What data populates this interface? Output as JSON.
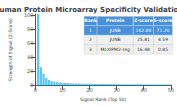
{
  "chart_data": {
    "type": "bar",
    "title": "Human Protein Microarray Specificity Validation",
    "xlabel": "Signal Rank (Top 50)",
    "ylabel": "Strength of Signal (Z-Score)",
    "x": [
      1,
      2,
      3,
      4,
      5,
      6,
      7,
      8,
      9,
      10,
      11,
      12,
      13,
      14,
      15,
      16,
      17,
      18,
      19,
      20,
      21,
      22,
      23,
      24,
      25,
      26,
      27,
      28,
      29,
      30,
      31,
      32,
      33,
      34,
      35,
      36,
      37,
      38,
      39,
      40,
      41,
      42,
      43,
      44,
      45,
      46,
      47,
      48,
      49,
      50
    ],
    "values": [
      102.0,
      25.81,
      16.48,
      10.2,
      7.5,
      5.8,
      4.9,
      4.2,
      3.8,
      3.4,
      3.1,
      2.9,
      2.7,
      2.5,
      2.3,
      2.2,
      2.1,
      2.0,
      1.9,
      1.8,
      1.75,
      1.7,
      1.65,
      1.6,
      1.55,
      1.5,
      1.45,
      1.4,
      1.35,
      1.3,
      1.25,
      1.2,
      1.18,
      1.15,
      1.12,
      1.1,
      1.08,
      1.06,
      1.04,
      1.02,
      1.0,
      0.98,
      0.96,
      0.94,
      0.92,
      0.9,
      0.88,
      0.86,
      0.84,
      0.82
    ],
    "color": "#5bc8f5",
    "xlim": [
      0,
      50
    ],
    "xticks": [
      0,
      10,
      20,
      30,
      40,
      50
    ],
    "ylim": [
      0,
      102
    ],
    "yticks": [
      0,
      20,
      40,
      60,
      80,
      100
    ],
    "grid": false,
    "table": {
      "header": [
        "Rank",
        "Protein",
        "Z-score",
        "S-score"
      ],
      "rows": [
        [
          "1",
          "JUNB",
          "102.00",
          "71.20"
        ],
        [
          "2",
          "JUNB",
          "25.81",
          "4.59"
        ],
        [
          "3",
          "MLXIPM2-reg",
          "16.48",
          "0.85"
        ]
      ],
      "color": "#4a90d9"
    }
  }
}
